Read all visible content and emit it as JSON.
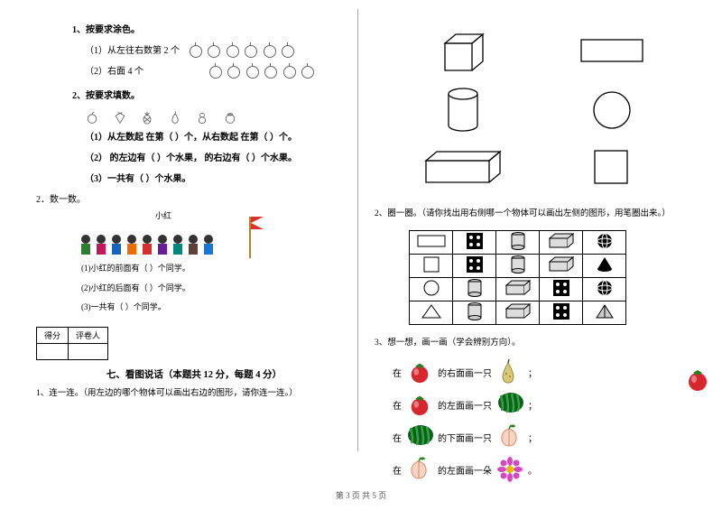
{
  "left": {
    "q1": {
      "heading": "1、按要求涂色。",
      "sub1_label": "（1）从左往右数第 2 个",
      "sub2_label": "（2）右面 4 个",
      "apple_count_per_row": 6,
      "apple_rows": 2
    },
    "q2": {
      "heading": "2、按要求填数。",
      "fruits": [
        "apple",
        "strawberry",
        "pineapple",
        "pear",
        "gourd",
        "orange"
      ],
      "sub1": "（1）从左数起            在第（     ）个，从右数起            在第（     ）个。",
      "sub2": "（2）       的左边有（     ）个水果，       的右边有（     ）个水果。",
      "sub3": "（3）一共有（     ）个水果。"
    },
    "q_count": {
      "heading": "2．数一数。",
      "xiaohong_label": "小红",
      "children_colors": [
        "#2e7d32",
        "#c2185b",
        "#1565c0",
        "#ef6c00",
        "#d32f2f",
        "#6a1b9a",
        "#00897b",
        "#5d4037",
        "#1976d2"
      ],
      "line1": "(1)小红的前面有（     ）个同学。",
      "line2": "(2)小红的后面有（     ）个同学。",
      "line3": "(3)一共有（     ）个同学。"
    },
    "score": {
      "c1": "得分",
      "c2": "评卷人"
    },
    "section7": "七、看图说话（本题共 12 分，每题 4 分）",
    "q7_1": "1、连一连。（用左边的哪个物体可以画出右边的图形，请你连一连。）"
  },
  "right": {
    "shapes_left": [
      "cube",
      "cylinder",
      "cuboid"
    ],
    "shapes_right": [
      "rectangle",
      "circle",
      "square"
    ],
    "q2_heading": "2、圈一圈。（请你找出用右侧哪一个物体可以画出左侧的图形，用笔圈出来。）",
    "match_rows": [
      [
        "rect",
        "dice",
        "can",
        "cuboid",
        "ball"
      ],
      [
        "square",
        "dice",
        "can",
        "cuboid",
        "cone"
      ],
      [
        "circle",
        "can",
        "cuboid",
        "dice",
        "ball"
      ],
      [
        "triangle",
        "can",
        "cuboid",
        "dice",
        "pyramid"
      ]
    ],
    "q3_heading": "3、想一想，画一画（学会辨别方向）。",
    "q3_rows": [
      {
        "pre": "在",
        "fruit": "tomato",
        "mid": "的右面画一只",
        "draw": "pear",
        "end": "；"
      },
      {
        "pre": "在",
        "fruit": "tomato",
        "mid": "的左面画一只",
        "draw": "watermelon",
        "end": "；"
      },
      {
        "pre": "在",
        "fruit": "watermelon",
        "mid": "的下面画一只",
        "draw": "peach",
        "end": "；"
      },
      {
        "pre": "在",
        "fruit": "peach",
        "mid": "的左面画一朵",
        "draw": "flower",
        "end": "。"
      }
    ]
  },
  "footer": "第 3 页  共 5 页",
  "colors": {
    "tomato": "#d7262e",
    "tomato_leaf": "#2e7d1f",
    "pear": "#d8c97a",
    "watermelon_dark": "#0c5f1e",
    "watermelon_light": "#2fa53b",
    "peach_fill": "#f6d5c4",
    "peach_stroke": "#d98b6a",
    "flower_petal": "#d647c2",
    "flower_center": "#e6b800"
  }
}
